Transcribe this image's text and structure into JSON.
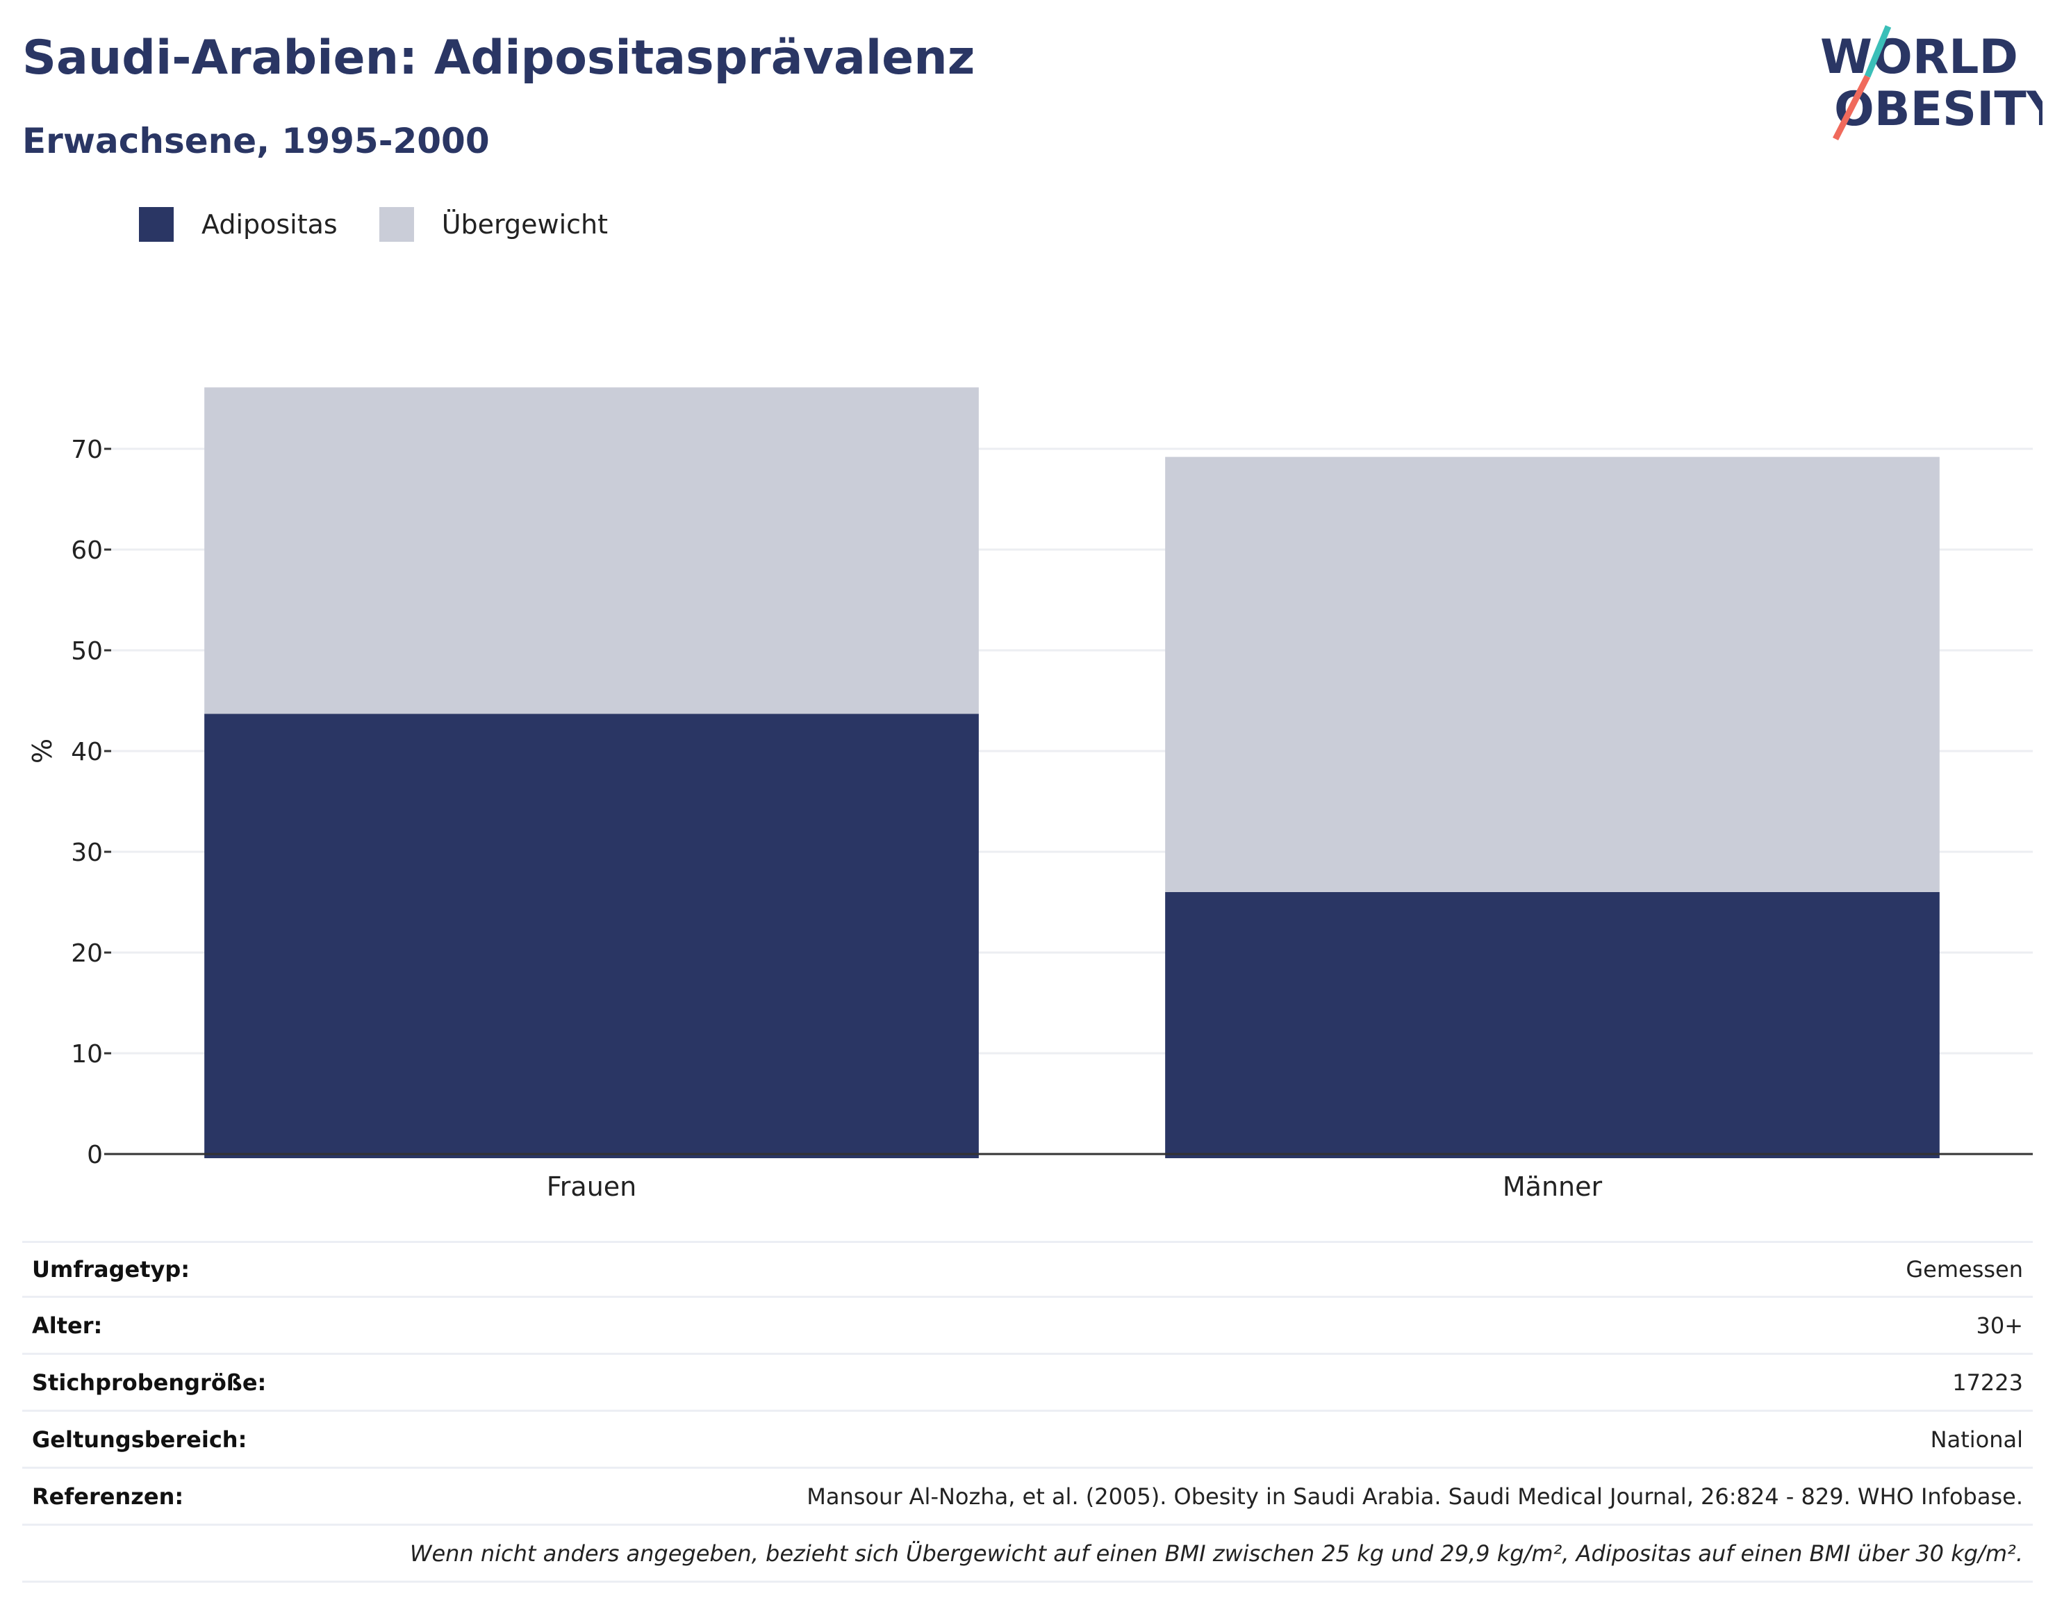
{
  "header": {
    "title": "Saudi-Arabien: Adipositasprävalenz",
    "subtitle": "Erwachsene, 1995-2000",
    "logo_line1": "WORLD",
    "logo_line2": "OBESITY"
  },
  "colors": {
    "adipositas": "#2a3664",
    "uebergewicht": "#cacdd8",
    "title": "#2a3664",
    "logo_teal": "#3bbfb8",
    "logo_coral": "#f06a5c"
  },
  "chart_data": {
    "type": "bar",
    "stacked": true,
    "categories": [
      "Frauen",
      "Männer"
    ],
    "series": [
      {
        "name": "Adipositas",
        "values": [
          43.7,
          26.0
        ]
      },
      {
        "name": "Übergewicht",
        "values": [
          32.4,
          43.2
        ]
      }
    ],
    "ylabel": "%",
    "ylim": [
      0,
      76.1
    ],
    "yticks": [
      0,
      10,
      20,
      30,
      40,
      50,
      60,
      70
    ],
    "grid": true,
    "legend_position": "top-left"
  },
  "meta": [
    {
      "label": "Umfragetyp:",
      "value": "Gemessen"
    },
    {
      "label": "Alter:",
      "value": "30+"
    },
    {
      "label": "Stichprobengröße:",
      "value": "17223"
    },
    {
      "label": "Geltungsbereich:",
      "value": "National"
    },
    {
      "label": "Referenzen:",
      "value": "Mansour Al-Nozha, et al. (2005). Obesity in Saudi Arabia. Saudi Medical Journal, 26:824 - 829. WHO Infobase."
    }
  ],
  "footnote": "Wenn nicht anders angegeben, bezieht sich Übergewicht auf einen BMI zwischen 25 kg und 29,9 kg/m², Adipositas auf einen BMI über 30 kg/m²."
}
